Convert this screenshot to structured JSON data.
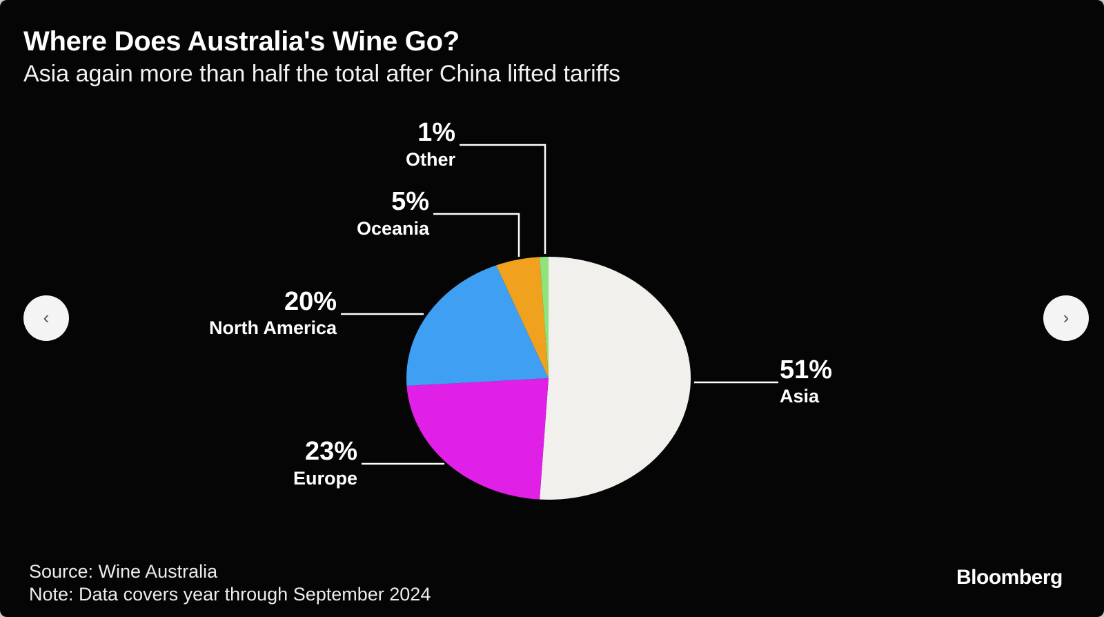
{
  "header": {
    "title": "Where Does Australia's Wine Go?",
    "subtitle": "Asia again more than half the total after China lifted tariffs"
  },
  "navigation": {
    "prev_icon": "chevron-left-icon",
    "prev_glyph": "‹",
    "next_icon": "chevron-right-icon",
    "next_glyph": "›"
  },
  "chart_data": {
    "type": "pie",
    "title": "Where Does Australia's Wine Go?",
    "subtitle": "Asia again more than half the total after China lifted tariffs",
    "slices": [
      {
        "name": "Asia",
        "value": 51,
        "label": "51%",
        "color": "#f2f0ec"
      },
      {
        "name": "Europe",
        "value": 23,
        "label": "23%",
        "color": "#e020e6"
      },
      {
        "name": "North America",
        "value": 20,
        "label": "20%",
        "color": "#3f9ff2"
      },
      {
        "name": "Oceania",
        "value": 5,
        "label": "5%",
        "color": "#f0a21e"
      },
      {
        "name": "Other",
        "value": 1,
        "label": "1%",
        "color": "#8fe37a"
      }
    ]
  },
  "footer": {
    "source": "Source: Wine Australia",
    "note": "Note: Data covers year through September 2024",
    "brand": "Bloomberg"
  },
  "colors": {
    "background": "#050505",
    "text": "#ffffff",
    "leader_line": "#ffffff"
  }
}
